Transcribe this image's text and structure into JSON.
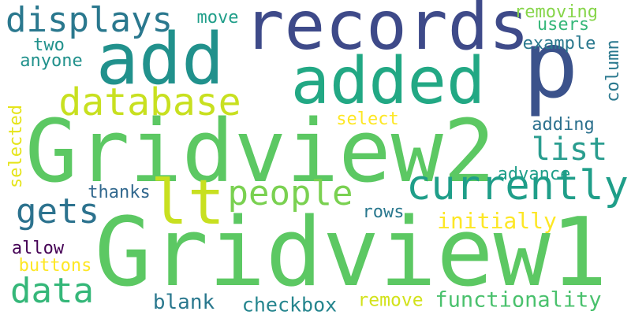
{
  "words": [
    {
      "text": "Gridview1",
      "color": "#5cc863",
      "orientation": "horizontal"
    },
    {
      "text": "Gridview2",
      "color": "#5cc863",
      "orientation": "horizontal"
    },
    {
      "text": "records",
      "color": "#3e4a89",
      "orientation": "horizontal"
    },
    {
      "text": "added",
      "color": "#22a884",
      "orientation": "horizontal"
    },
    {
      "text": "add",
      "color": "#21918c",
      "orientation": "horizontal"
    },
    {
      "text": "p",
      "color": "#3b528b",
      "orientation": "horizontal"
    },
    {
      "text": "lt",
      "color": "#c8e020",
      "orientation": "horizontal"
    },
    {
      "text": "currently",
      "color": "#1f9e89",
      "orientation": "horizontal"
    },
    {
      "text": "database",
      "color": "#c8e020",
      "orientation": "horizontal"
    },
    {
      "text": "displays",
      "color": "#2a788e",
      "orientation": "horizontal"
    },
    {
      "text": "people",
      "color": "#7ad151",
      "orientation": "horizontal"
    },
    {
      "text": "gets",
      "color": "#2c728e",
      "orientation": "horizontal"
    },
    {
      "text": "data",
      "color": "#35b779",
      "orientation": "horizontal"
    },
    {
      "text": "list",
      "color": "#2a9d8f",
      "orientation": "horizontal"
    },
    {
      "text": "functionality",
      "color": "#4ac16d",
      "orientation": "horizontal"
    },
    {
      "text": "initially",
      "color": "#fde725",
      "orientation": "horizontal"
    },
    {
      "text": "checkbox",
      "color": "#25858e",
      "orientation": "horizontal"
    },
    {
      "text": "blank",
      "color": "#2a788e",
      "orientation": "horizontal"
    },
    {
      "text": "remove",
      "color": "#d2e21b",
      "orientation": "horizontal"
    },
    {
      "text": "removing",
      "color": "#86d549",
      "orientation": "horizontal"
    },
    {
      "text": "users",
      "color": "#35b779",
      "orientation": "horizontal"
    },
    {
      "text": "example",
      "color": "#2a788e",
      "orientation": "horizontal"
    },
    {
      "text": "column",
      "color": "#2a788e",
      "orientation": "vertical"
    },
    {
      "text": "adding",
      "color": "#2c718e",
      "orientation": "horizontal"
    },
    {
      "text": "select",
      "color": "#fde725",
      "orientation": "horizontal"
    },
    {
      "text": "advance",
      "color": "#1f9e89",
      "orientation": "horizontal"
    },
    {
      "text": "rows",
      "color": "#2a788e",
      "orientation": "horizontal"
    },
    {
      "text": "thanks",
      "color": "#31688e",
      "orientation": "horizontal"
    },
    {
      "text": "allow",
      "color": "#440154",
      "orientation": "horizontal"
    },
    {
      "text": "buttons",
      "color": "#fde725",
      "orientation": "horizontal"
    },
    {
      "text": "two",
      "color": "#21918c",
      "orientation": "horizontal"
    },
    {
      "text": "anyone",
      "color": "#21918c",
      "orientation": "horizontal"
    },
    {
      "text": "move",
      "color": "#1f9e89",
      "orientation": "horizontal"
    },
    {
      "text": "selected",
      "color": "#e5e419",
      "orientation": "vertical"
    }
  ]
}
